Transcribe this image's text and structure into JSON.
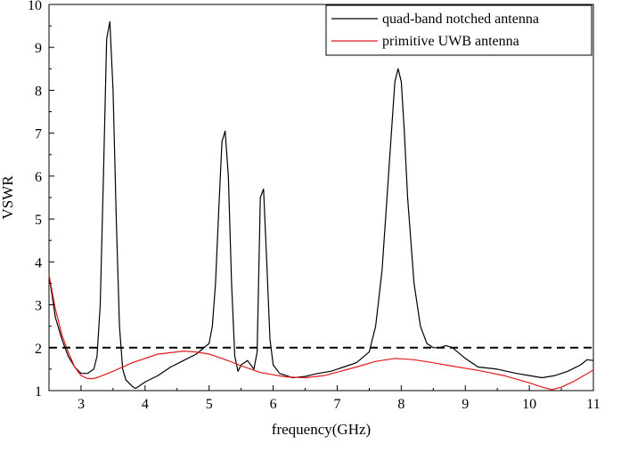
{
  "chart_data": {
    "type": "line",
    "xlabel": "frequency(GHz)",
    "ylabel": "VSWR",
    "xlim": [
      2.5,
      11
    ],
    "ylim": [
      1,
      10
    ],
    "xticks": [
      "3",
      "4",
      "5",
      "6",
      "7",
      "8",
      "9",
      "10",
      "11"
    ],
    "yticks": [
      "1",
      "2",
      "3",
      "4",
      "5",
      "6",
      "7",
      "8",
      "9",
      "10"
    ],
    "grid": false,
    "legend_position": "top-right",
    "reference_line": {
      "y": 2,
      "style": "dashed",
      "color": "#000000"
    },
    "series": [
      {
        "name": "quad-band notched antenna",
        "color": "#000000",
        "x": [
          2.5,
          2.6,
          2.7,
          2.8,
          2.9,
          3.0,
          3.1,
          3.2,
          3.25,
          3.3,
          3.35,
          3.4,
          3.45,
          3.5,
          3.55,
          3.6,
          3.65,
          3.7,
          3.8,
          3.85,
          3.9,
          4.0,
          4.2,
          4.4,
          4.6,
          4.8,
          5.0,
          5.05,
          5.1,
          5.15,
          5.2,
          5.25,
          5.3,
          5.35,
          5.4,
          5.45,
          5.5,
          5.6,
          5.7,
          5.75,
          5.8,
          5.85,
          5.9,
          5.95,
          6.0,
          6.1,
          6.3,
          6.5,
          6.7,
          6.9,
          7.1,
          7.3,
          7.5,
          7.6,
          7.7,
          7.8,
          7.9,
          7.95,
          8.0,
          8.05,
          8.1,
          8.2,
          8.3,
          8.4,
          8.5,
          8.6,
          8.7,
          8.8,
          9.0,
          9.2,
          9.5,
          9.8,
          10.0,
          10.2,
          10.4,
          10.6,
          10.8,
          10.9,
          11.0
        ],
        "y": [
          3.7,
          2.7,
          2.2,
          1.8,
          1.55,
          1.4,
          1.4,
          1.5,
          1.8,
          3.0,
          6.0,
          9.2,
          9.6,
          8.0,
          5.0,
          2.5,
          1.5,
          1.25,
          1.1,
          1.05,
          1.1,
          1.2,
          1.35,
          1.55,
          1.7,
          1.85,
          2.1,
          2.5,
          3.5,
          5.2,
          6.8,
          7.05,
          6.0,
          3.5,
          1.8,
          1.45,
          1.6,
          1.7,
          1.5,
          1.9,
          5.5,
          5.7,
          4.0,
          2.2,
          1.6,
          1.4,
          1.3,
          1.33,
          1.4,
          1.45,
          1.55,
          1.65,
          1.9,
          2.5,
          3.8,
          6.0,
          8.2,
          8.5,
          8.2,
          7.0,
          5.5,
          3.5,
          2.5,
          2.1,
          2.0,
          2.0,
          2.05,
          2.0,
          1.75,
          1.55,
          1.5,
          1.4,
          1.35,
          1.3,
          1.35,
          1.45,
          1.6,
          1.72,
          1.7
        ]
      },
      {
        "name": "primitive UWB antenna",
        "color": "#e31a1c",
        "x": [
          2.5,
          2.6,
          2.7,
          2.8,
          2.9,
          3.0,
          3.1,
          3.2,
          3.3,
          3.5,
          3.8,
          4.2,
          4.6,
          4.8,
          5.0,
          5.2,
          5.5,
          5.8,
          6.2,
          6.5,
          6.8,
          7.0,
          7.3,
          7.6,
          7.9,
          8.2,
          8.5,
          8.8,
          9.2,
          9.6,
          10.0,
          10.2,
          10.35,
          10.5,
          10.7,
          11.0
        ],
        "y": [
          3.7,
          2.9,
          2.3,
          1.9,
          1.55,
          1.35,
          1.28,
          1.28,
          1.33,
          1.45,
          1.65,
          1.85,
          1.92,
          1.9,
          1.85,
          1.75,
          1.58,
          1.42,
          1.32,
          1.3,
          1.35,
          1.43,
          1.55,
          1.68,
          1.75,
          1.72,
          1.65,
          1.57,
          1.47,
          1.35,
          1.18,
          1.08,
          1.02,
          1.08,
          1.22,
          1.48
        ]
      }
    ]
  }
}
